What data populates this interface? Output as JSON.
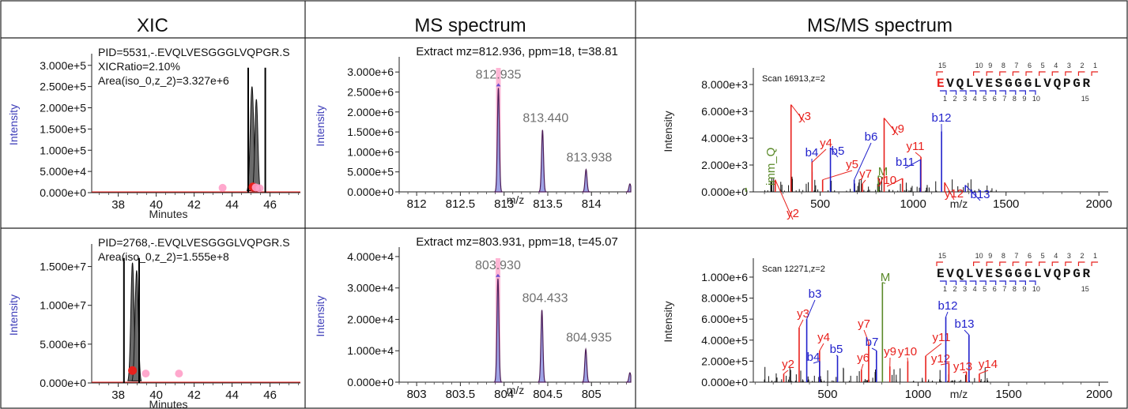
{
  "headers": [
    "XIC",
    "MS spectrum",
    "MS/MS spectrum"
  ],
  "colors": {
    "red": "#e8201c",
    "blue": "#2222cc",
    "green": "#5b8a2a",
    "pink": "#ff9ec8",
    "grey_label": "#707070",
    "ylabel_blue": "#3d3db8"
  },
  "chart_data": [
    {
      "panel": "xic-1",
      "type": "area",
      "info": [
        "PID=5531,-.EVQLVESGGGLVQPGR.S",
        "XICRatio=2.10%",
        "Area(iso_0,z_2)=3.327e+6"
      ],
      "xlabel": "Minutes",
      "ylabel": "Intensity",
      "xlim": [
        36.6,
        47.6
      ],
      "ylim": [
        0,
        320000
      ],
      "xticks": [
        38,
        40,
        42,
        44,
        46
      ],
      "yticks": [
        0,
        50000,
        100000,
        150000,
        200000,
        250000,
        300000
      ],
      "ytick_labels": [
        "0.000e+0",
        "5.000e+4",
        "1.000e+5",
        "1.500e+5",
        "2.000e+5",
        "2.500e+5",
        "3.000e+5"
      ],
      "peaks": [
        {
          "center": 45.05,
          "height": 250000,
          "width": 0.13
        },
        {
          "center": 45.28,
          "height": 220000,
          "width": 0.11
        }
      ],
      "boundaries": [
        44.85,
        45.75
      ],
      "points": [
        {
          "x": 43.5,
          "y": 4000,
          "color": "pink"
        },
        {
          "x": 45.1,
          "y": 6000,
          "color": "red"
        },
        {
          "x": 45.25,
          "y": 5000,
          "color": "pink"
        },
        {
          "x": 45.45,
          "y": 3000,
          "color": "pink"
        }
      ]
    },
    {
      "panel": "ms-1",
      "type": "line",
      "title": "Extract mz=812.936, ppm=18, t=38.81",
      "xlabel": "m/z",
      "ylabel": "Intensity",
      "xlim": [
        811.8,
        814.45
      ],
      "ylim": [
        0,
        3300000
      ],
      "xticks": [
        812,
        812.5,
        813,
        813.5,
        814
      ],
      "xtick_labels": [
        "812",
        "812.5",
        "813",
        "813.5",
        "814"
      ],
      "yticks": [
        0,
        500000,
        1000000,
        1500000,
        2000000,
        2500000,
        3000000
      ],
      "ytick_labels": [
        "0.000e+0",
        "5.000e+5",
        "1.000e+6",
        "1.500e+6",
        "2.000e+6",
        "2.500e+6",
        "3.000e+6"
      ],
      "peaks": [
        {
          "mz": 812.935,
          "height": 2600000
        },
        {
          "mz": 813.44,
          "height": 1550000
        },
        {
          "mz": 813.938,
          "height": 560000
        },
        {
          "mz": 814.44,
          "height": 200000
        }
      ],
      "peak_labels": [
        "812.935",
        "813.440",
        "813.938"
      ],
      "highlight_mz": 812.935
    },
    {
      "panel": "msms-1",
      "type": "bar",
      "scan": "Scan 16913,z=2",
      "peptide": "EVQLVESGGGLVQPGR",
      "xlabel": "m/z",
      "ylabel": "Intensity",
      "xlim": [
        140,
        2050
      ],
      "ylim": [
        0,
        9000
      ],
      "xticks": [
        500,
        1000,
        1500,
        2000
      ],
      "yticks": [
        0,
        2000,
        4000,
        6000,
        8000
      ],
      "ytick_labels": [
        "0.000e+0",
        "2.000e+3",
        "4.000e+3",
        "6.000e+3",
        "8.000e+3"
      ],
      "annotations": [
        {
          "label": "y2",
          "mz": 258,
          "h": 900,
          "color": "red"
        },
        {
          "label": "y3",
          "mz": 343,
          "h": 6500,
          "color": "red"
        },
        {
          "label": "b4",
          "mz": 456,
          "h": 1500,
          "color": "blue"
        },
        {
          "label": "y4",
          "mz": 456,
          "h": 2200,
          "color": "red"
        },
        {
          "label": "y5",
          "mz": 513,
          "h": 900,
          "color": "red"
        },
        {
          "label": "b5",
          "mz": 555,
          "h": 3300,
          "color": "blue"
        },
        {
          "label": "b6",
          "mz": 683,
          "h": 900,
          "color": "blue"
        },
        {
          "label": "y7",
          "mz": 727,
          "h": 600,
          "color": "red"
        },
        {
          "label": "imm_Q",
          "mz": 101,
          "h": 300,
          "color": "green"
        },
        {
          "label": "M",
          "mz": 813,
          "h": 1200,
          "color": "green"
        },
        {
          "label": "y9",
          "mz": 844,
          "h": 5500,
          "color": "red"
        },
        {
          "label": "y10",
          "mz": 943,
          "h": 1000,
          "color": "red"
        },
        {
          "label": "y11",
          "mz": 1042,
          "h": 2600,
          "color": "red"
        },
        {
          "label": "b11",
          "mz": 1040,
          "h": 2400,
          "color": "blue"
        },
        {
          "label": "b12",
          "mz": 1153,
          "h": 4500,
          "color": "blue"
        },
        {
          "label": "y12",
          "mz": 1170,
          "h": 700,
          "color": "red"
        },
        {
          "label": "b13",
          "mz": 1281,
          "h": 500,
          "color": "blue"
        }
      ],
      "ladder_top": [
        "15",
        "10",
        "9",
        "8",
        "7",
        "6",
        "5",
        "4",
        "3",
        "2",
        "1"
      ],
      "ladder_bottom": [
        "1",
        "2",
        "3",
        "4",
        "5",
        "6",
        "7",
        "8",
        "9",
        "10",
        "15"
      ]
    },
    {
      "panel": "xic-2",
      "type": "area",
      "info": [
        "PID=2768,-.EVQLVESGGGLVQPGR.S",
        "Area(iso_0,z_2)=1.555e+8"
      ],
      "xlabel": "Minutes",
      "ylabel": "Intensity",
      "xlim": [
        36.6,
        47.6
      ],
      "ylim": [
        0,
        17500000
      ],
      "xticks": [
        38,
        40,
        42,
        44,
        46
      ],
      "yticks": [
        0,
        5000000,
        10000000,
        15000000
      ],
      "ytick_labels": [
        "0.000e+0",
        "5.000e+6",
        "1.000e+7",
        "1.500e+7"
      ],
      "peaks": [
        {
          "center": 38.75,
          "height": 15500000,
          "width": 0.12
        },
        {
          "center": 38.97,
          "height": 14500000,
          "width": 0.12
        }
      ],
      "boundaries": [
        38.3,
        39.1
      ],
      "points": [
        {
          "x": 38.75,
          "y": 1200000,
          "color": "red"
        },
        {
          "x": 39.45,
          "y": 800000,
          "color": "pink"
        },
        {
          "x": 41.2,
          "y": 800000,
          "color": "pink"
        }
      ]
    },
    {
      "panel": "ms-2",
      "type": "line",
      "title": "Extract mz=803.931, ppm=18, t=45.07",
      "xlabel": "m/z",
      "ylabel": "Intensity",
      "xlim": [
        802.8,
        805.45
      ],
      "ylim": [
        0,
        42000
      ],
      "xticks": [
        803,
        803.5,
        804,
        804.5,
        805
      ],
      "xtick_labels": [
        "803",
        "803.5",
        "804",
        "804.5",
        "805"
      ],
      "yticks": [
        0,
        10000,
        20000,
        30000,
        40000
      ],
      "ytick_labels": [
        "0.000e+0",
        "1.000e+4",
        "2.000e+4",
        "3.000e+4",
        "4.000e+4"
      ],
      "peaks": [
        {
          "mz": 803.93,
          "height": 33000
        },
        {
          "mz": 804.433,
          "height": 23000
        },
        {
          "mz": 804.935,
          "height": 10500
        },
        {
          "mz": 805.44,
          "height": 3000
        }
      ],
      "peak_labels": [
        "803.930",
        "804.433",
        "804.935"
      ],
      "highlight_mz": 803.93
    },
    {
      "panel": "msms-2",
      "type": "bar",
      "scan": "Scan 12271,z=2",
      "peptide": "EVQLVESGGGLVQPGR",
      "xlabel": "m/z",
      "ylabel": "Intensity",
      "xlim": [
        90,
        2050
      ],
      "ylim": [
        0,
        1150000
      ],
      "xticks": [
        500,
        1000,
        1500,
        2000
      ],
      "yticks": [
        0,
        200000,
        400000,
        600000,
        800000,
        1000000
      ],
      "ytick_labels": [
        "0.000e+0",
        "2.000e+5",
        "4.000e+5",
        "6.000e+5",
        "8.000e+5",
        "1.000e+6"
      ],
      "annotations": [
        {
          "label": "y2",
          "mz": 258,
          "h": 80000,
          "color": "red"
        },
        {
          "label": "y3",
          "mz": 343,
          "h": 520000,
          "color": "red"
        },
        {
          "label": "b3",
          "mz": 385,
          "h": 600000,
          "color": "blue"
        },
        {
          "label": "y4",
          "mz": 456,
          "h": 300000,
          "color": "red"
        },
        {
          "label": "b4",
          "mz": 456,
          "h": 200000,
          "color": "blue"
        },
        {
          "label": "b5",
          "mz": 555,
          "h": 250000,
          "color": "blue"
        },
        {
          "label": "y6",
          "mz": 687,
          "h": 120000,
          "color": "red"
        },
        {
          "label": "y7",
          "mz": 727,
          "h": 380000,
          "color": "red"
        },
        {
          "label": "b7",
          "mz": 770,
          "h": 300000,
          "color": "blue"
        },
        {
          "label": "M",
          "mz": 803,
          "h": 950000,
          "color": "green"
        },
        {
          "label": "y9",
          "mz": 844,
          "h": 150000,
          "color": "red"
        },
        {
          "label": "y10",
          "mz": 943,
          "h": 200000,
          "color": "red"
        },
        {
          "label": "y11",
          "mz": 1042,
          "h": 250000,
          "color": "red"
        },
        {
          "label": "y12",
          "mz": 1170,
          "h": 180000,
          "color": "red"
        },
        {
          "label": "b12",
          "mz": 1153,
          "h": 620000,
          "color": "blue"
        },
        {
          "label": "b13",
          "mz": 1281,
          "h": 450000,
          "color": "blue"
        },
        {
          "label": "y13",
          "mz": 1267,
          "h": 100000,
          "color": "red"
        },
        {
          "label": "y14",
          "mz": 1338,
          "h": 80000,
          "color": "red"
        }
      ],
      "ladder_top": [
        "15",
        "10",
        "9",
        "8",
        "7",
        "6",
        "5",
        "4",
        "3",
        "2",
        "1"
      ],
      "ladder_bottom": [
        "1",
        "2",
        "3",
        "4",
        "5",
        "6",
        "7",
        "8",
        "9",
        "10",
        "15"
      ]
    }
  ]
}
